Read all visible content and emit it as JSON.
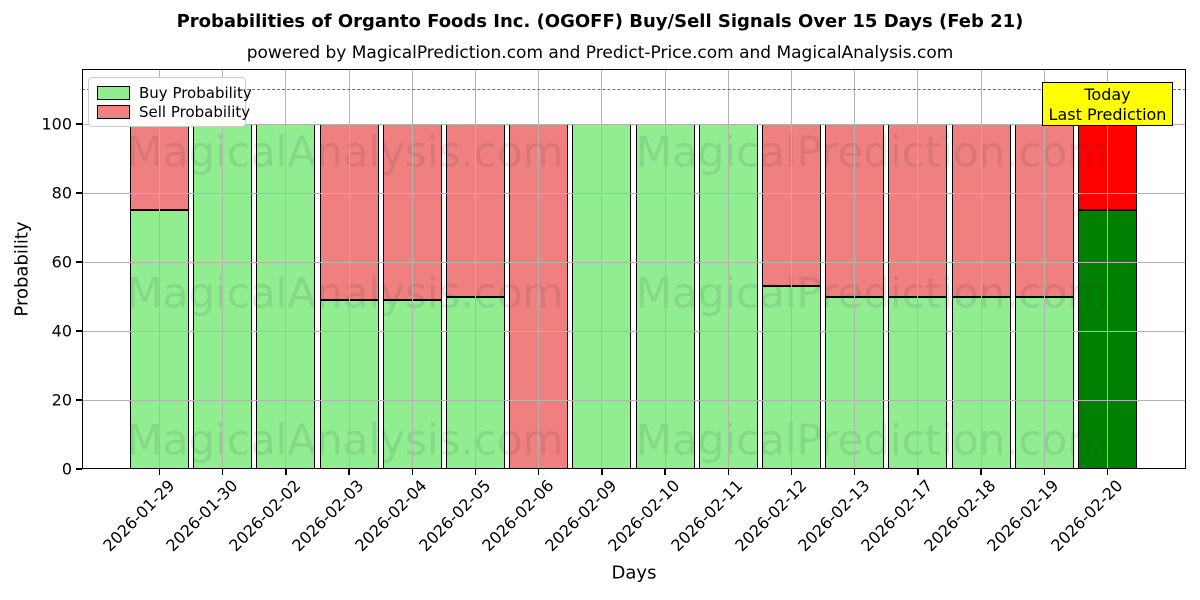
{
  "subtitle": "powered by MagicalPrediction.com and Predict-Price.com and MagicalAnalysis.com",
  "legend": {
    "items": [
      {
        "label": "Buy Probability",
        "color": "#90EE90"
      },
      {
        "label": "Sell Probability",
        "color": "#F08080"
      }
    ]
  },
  "annotation_box": {
    "line1": "Today",
    "line2": "Last Prediction",
    "bg": "#FFFF00"
  },
  "watermark": {
    "left": "MagicalAnalysis.com",
    "right": "MagicalPrediction.com"
  },
  "chart_data": {
    "type": "bar",
    "stacked": true,
    "title": "Probabilities of Organto Foods Inc. (OGOFF) Buy/Sell Signals Over 15 Days (Feb 21)",
    "xlabel": "Days",
    "ylabel": "Probability",
    "categories": [
      "2026-01-29",
      "2026-01-30",
      "2026-02-02",
      "2026-02-03",
      "2026-02-04",
      "2026-02-05",
      "2026-02-06",
      "2026-02-09",
      "2026-02-10",
      "2026-02-11",
      "2026-02-12",
      "2026-02-13",
      "2026-02-17",
      "2026-02-18",
      "2026-02-19",
      "2026-02-20"
    ],
    "series": [
      {
        "name": "Buy Probability",
        "color": "#90EE90",
        "values": [
          75,
          100,
          100,
          49,
          49,
          50,
          0,
          100,
          100,
          100,
          53,
          50,
          50,
          50,
          50,
          75
        ]
      },
      {
        "name": "Sell Probability",
        "color": "#F08080",
        "values": [
          25,
          0,
          0,
          51,
          51,
          50,
          100,
          0,
          0,
          0,
          47,
          50,
          50,
          50,
          50,
          25
        ]
      }
    ],
    "last_bar_colors": {
      "buy": "#008000",
      "sell": "#FF0000"
    },
    "yticks": [
      0,
      20,
      40,
      60,
      80,
      100
    ],
    "ylim": [
      0,
      116
    ],
    "reference_line_y": 110,
    "grid": true,
    "legend_position": "upper left",
    "bar_edge_color": "#000000",
    "background": "#FFFFFF"
  }
}
